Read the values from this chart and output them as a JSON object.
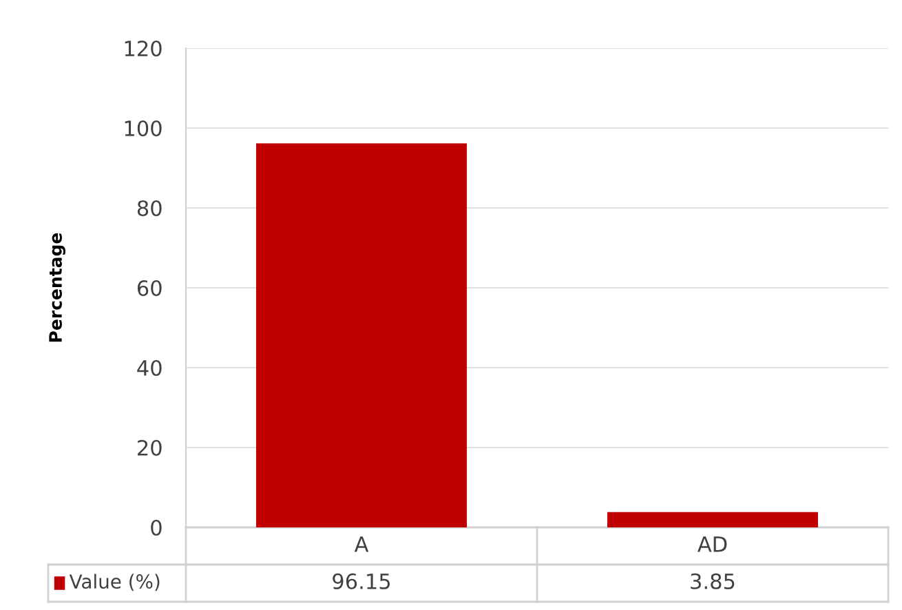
{
  "chart_data": {
    "type": "bar",
    "ylabel": "Percentage",
    "categories": [
      "A",
      "AD"
    ],
    "series": [
      {
        "name": "Value (%)",
        "color": "#c00000",
        "values": [
          96.15,
          3.85
        ]
      }
    ],
    "ylim": [
      0,
      120
    ],
    "yticks": [
      0,
      20,
      40,
      60,
      80,
      100,
      120
    ],
    "grid": "y",
    "data_labels": true,
    "legend": "bottom"
  }
}
